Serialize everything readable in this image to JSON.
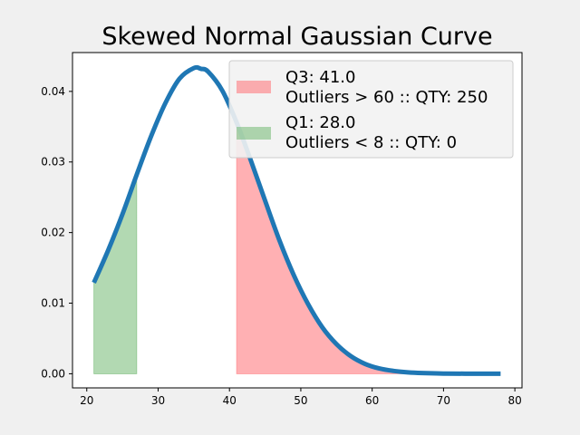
{
  "chart_data": {
    "type": "area",
    "title": "Skewed Normal Gaussian Curve",
    "xlabel": "",
    "ylabel": "",
    "xlim": [
      18,
      81
    ],
    "ylim": [
      -0.002,
      0.0455
    ],
    "xticks": [
      20,
      30,
      40,
      50,
      60,
      70,
      80
    ],
    "xtick_labels": [
      "20",
      "30",
      "40",
      "50",
      "60",
      "70",
      "80"
    ],
    "yticks": [
      0.0,
      0.01,
      0.02,
      0.03,
      0.04
    ],
    "ytick_labels": [
      "0.00",
      "0.01",
      "0.02",
      "0.03",
      "0.04"
    ],
    "grid": false,
    "legend_position": "top-right",
    "curve": {
      "color": "#1f77b4",
      "x": [
        21,
        23,
        25,
        27,
        29,
        31,
        33,
        35,
        36,
        37,
        39,
        41,
        43,
        45,
        47,
        49,
        51,
        53,
        55,
        57,
        59,
        61,
        63,
        65,
        67,
        70,
        73,
        76,
        78
      ],
      "y": [
        0.0129,
        0.0175,
        0.0226,
        0.0282,
        0.0336,
        0.0383,
        0.0418,
        0.0433,
        0.0432,
        0.0428,
        0.0401,
        0.0356,
        0.0302,
        0.0245,
        0.0189,
        0.014,
        0.0099,
        0.0066,
        0.0042,
        0.0025,
        0.0014,
        0.00075,
        0.0004,
        0.0002,
        0.0001,
        3e-05,
        1e-05,
        0.0,
        0.0
      ]
    },
    "shaded_regions": [
      {
        "label": "Q3: 41.0",
        "label_line2": "Outliers > 60 :: QTY: 250",
        "from": 41,
        "to": 78,
        "color": "#ff6f74"
      },
      {
        "label": "Q1: 28.0",
        "label_line2": "Outliers < 8 :: QTY: 0",
        "from": 21,
        "to": 27,
        "color": "#66b366"
      }
    ]
  }
}
